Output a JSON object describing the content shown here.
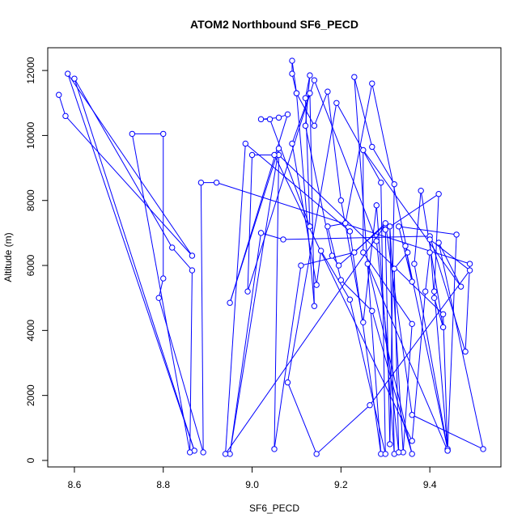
{
  "chart_data": {
    "type": "line",
    "title": "ATOM2 Northbound SF6_PECD",
    "xlabel": "SF6_PECD",
    "ylabel": "Altitude (m)",
    "xlim": [
      8.54,
      9.56
    ],
    "ylim": [
      -200,
      12700
    ],
    "xticks": [
      8.6,
      8.8,
      9.0,
      9.2,
      9.4
    ],
    "xtick_labels": [
      "8.6",
      "8.8",
      "9.0",
      "9.2",
      "9.4"
    ],
    "yticks": [
      0,
      2000,
      4000,
      6000,
      8000,
      10000,
      12000
    ],
    "ytick_labels": [
      "0",
      "2000",
      "4000",
      "6000",
      "8000",
      "10000",
      "12000"
    ],
    "grid": false,
    "legend": "none",
    "colors": {
      "series": "#0000ff",
      "axes": "#000000",
      "background": "#ffffff"
    },
    "series": [
      {
        "style": "lines+circles",
        "points": [
          [
            8.565,
            11250
          ],
          [
            8.58,
            10600
          ],
          [
            8.865,
            6300
          ],
          [
            8.585,
            11900
          ],
          [
            8.87,
            300
          ],
          [
            8.6,
            11750
          ],
          [
            8.82,
            6550
          ],
          [
            8.865,
            5850
          ],
          [
            8.86,
            250
          ],
          [
            8.73,
            10050
          ],
          [
            8.8,
            10050
          ],
          [
            8.8,
            5600
          ],
          [
            8.79,
            5000
          ],
          [
            8.89,
            250
          ],
          [
            8.885,
            8550
          ],
          [
            8.92,
            8550
          ],
          [
            9.49,
            6050
          ],
          [
            9.48,
            3350
          ],
          [
            9.4,
            6900
          ],
          [
            9.07,
            6800
          ],
          [
            9.02,
            7000
          ],
          [
            8.95,
            200
          ],
          [
            9.06,
            9600
          ],
          [
            8.95,
            4850
          ],
          [
            9.08,
            10650
          ],
          [
            9.06,
            10550
          ],
          [
            9.02,
            10500
          ],
          [
            9.04,
            10500
          ],
          [
            9.13,
            7200
          ],
          [
            9.12,
            11150
          ],
          [
            9.13,
            11850
          ],
          [
            9.12,
            10300
          ],
          [
            9.18,
            6300
          ],
          [
            9.195,
            6000
          ],
          [
            9.3,
            7250
          ],
          [
            8.94,
            200
          ],
          [
            8.985,
            9750
          ],
          [
            9.22,
            7050
          ],
          [
            9.29,
            200
          ],
          [
            9.23,
            11800
          ],
          [
            9.27,
            9650
          ],
          [
            9.32,
            8500
          ],
          [
            9.31,
            500
          ],
          [
            9.3,
            7100
          ],
          [
            9.42,
            8200
          ],
          [
            9.41,
            5200
          ],
          [
            9.44,
            300
          ],
          [
            9.46,
            6950
          ],
          [
            9.33,
            7200
          ],
          [
            9.36,
            5500
          ],
          [
            9.345,
            6600
          ],
          [
            9.44,
            350
          ],
          [
            9.365,
            6050
          ],
          [
            9.38,
            8300
          ],
          [
            9.43,
            4100
          ],
          [
            9.41,
            5000
          ],
          [
            9.4,
            6800
          ],
          [
            9.49,
            5850
          ],
          [
            9.265,
            1700
          ],
          [
            9.145,
            200
          ],
          [
            9.08,
            2400
          ],
          [
            9.19,
            11000
          ],
          [
            9.29,
            8550
          ],
          [
            9.3,
            200
          ],
          [
            9.22,
            4950
          ],
          [
            9.155,
            6450
          ],
          [
            9.145,
            5400
          ],
          [
            9.09,
            9750
          ],
          [
            9.13,
            11300
          ],
          [
            9.14,
            4750
          ],
          [
            9.1,
            11300
          ],
          [
            9.09,
            11900
          ],
          [
            9.09,
            12300
          ],
          [
            9.1,
            11300
          ],
          [
            9.14,
            10300
          ],
          [
            9.17,
            11350
          ],
          [
            9.2,
            8000
          ],
          [
            9.25,
            4250
          ],
          [
            9.28,
            7850
          ],
          [
            9.32,
            200
          ],
          [
            9.31,
            7200
          ],
          [
            9.34,
            250
          ],
          [
            9.36,
            4200
          ],
          [
            9.25,
            6400
          ],
          [
            9.25,
            9550
          ],
          [
            9.47,
            5350
          ],
          [
            9.42,
            6700
          ],
          [
            9.52,
            350
          ],
          [
            9.36,
            1400
          ],
          [
            9.3,
            7300
          ],
          [
            9.23,
            6400
          ],
          [
            9.11,
            6000
          ],
          [
            9.05,
            350
          ],
          [
            9.06,
            9400
          ],
          [
            9.43,
            4500
          ],
          [
            9.44,
            300
          ],
          [
            9.26,
            6050
          ],
          [
            9.36,
            200
          ],
          [
            9.27,
            4600
          ],
          [
            9.2,
            5550
          ],
          [
            9.17,
            7200
          ],
          [
            9.21,
            7300
          ],
          [
            9.27,
            11600
          ],
          [
            9.35,
            6400
          ],
          [
            9.32,
            5900
          ],
          [
            9.33,
            250
          ],
          [
            9.28,
            6750
          ],
          [
            9.14,
            11700
          ],
          [
            8.99,
            5200
          ],
          [
            9.0,
            9400
          ],
          [
            9.05,
            9400
          ],
          [
            9.36,
            600
          ],
          [
            9.39,
            5200
          ],
          [
            9.4,
            6400
          ]
        ]
      }
    ]
  }
}
